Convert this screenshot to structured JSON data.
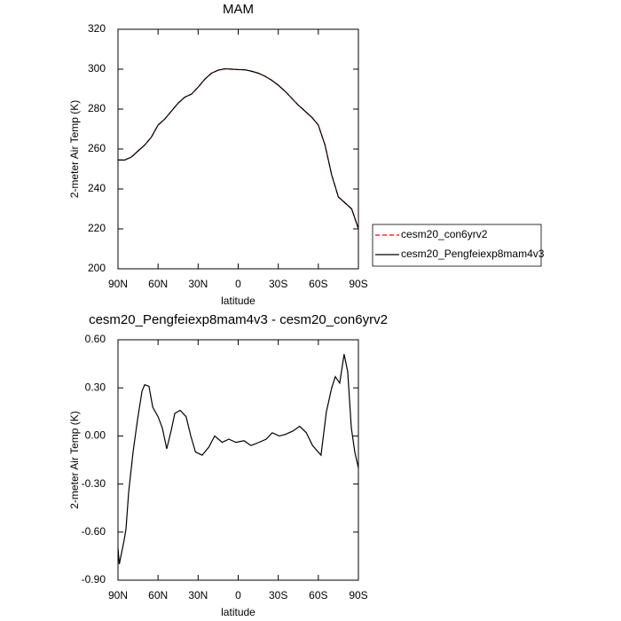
{
  "chart_data": [
    {
      "type": "line",
      "title": "MAM",
      "x_label": "latitude",
      "y_label": "2-meter Air Temp (K)",
      "x": [
        90,
        85,
        80,
        75,
        70,
        65,
        60,
        55,
        50,
        45,
        40,
        35,
        30,
        25,
        20,
        15,
        10,
        5,
        0,
        -5,
        -10,
        -15,
        -20,
        -25,
        -30,
        -35,
        -40,
        -45,
        -50,
        -55,
        -60,
        -65,
        -70,
        -75,
        -80,
        -85,
        -90
      ],
      "series": [
        {
          "name": "cesm20_con6yrv2",
          "color": "#ff0000",
          "dashed": true,
          "values": [
            254.5,
            254.5,
            256,
            259,
            262,
            266,
            272,
            275,
            279,
            283,
            286,
            287.5,
            291,
            295,
            298,
            299.5,
            300.2,
            300,
            299.8,
            299.7,
            299,
            298,
            296.5,
            294.5,
            292,
            289,
            285.5,
            282,
            279,
            276,
            272,
            262,
            247,
            236,
            233,
            230,
            220
          ]
        },
        {
          "name": "cesm20_Pengfeiexp8mam4v3",
          "color": "#000000",
          "dashed": false,
          "values": [
            254.5,
            254.5,
            256,
            259,
            262,
            266,
            272,
            275,
            279,
            283,
            286,
            287.5,
            291,
            295,
            298,
            299.5,
            300.2,
            300,
            299.8,
            299.7,
            299,
            298,
            296.5,
            294.5,
            292,
            289,
            285.5,
            282,
            279,
            276,
            272,
            262,
            247,
            236,
            233,
            230,
            220
          ]
        }
      ],
      "xlim": [
        90,
        -90
      ],
      "xticks": [
        {
          "value": 90,
          "label": "90N"
        },
        {
          "value": 60,
          "label": "60N"
        },
        {
          "value": 30,
          "label": "30N"
        },
        0,
        {
          "value": -30,
          "label": "30S"
        },
        {
          "value": -60,
          "label": "60S"
        },
        {
          "value": -90,
          "label": "90S"
        }
      ],
      "ylim": [
        200,
        320
      ],
      "yticks": [
        200,
        220,
        240,
        260,
        280,
        300,
        320
      ],
      "legend": "right"
    },
    {
      "type": "line",
      "title": "cesm20_Pengfeiexp8mam4v3 - cesm20_con6yrv2",
      "x_label": "latitude",
      "y_label": "2-meter Air Temp (K)",
      "x": [
        90,
        89,
        85.4,
        84,
        82,
        78.7,
        75.4,
        72,
        70,
        66.8,
        64,
        60,
        56.8,
        53.5,
        50,
        47.5,
        43.5,
        39,
        35.5,
        32,
        27,
        22,
        17.6,
        12,
        7,
        1.7,
        -4.3,
        -9.6,
        -15.6,
        -21,
        -25.5,
        -30.8,
        -35.5,
        -40.8,
        -46,
        -51,
        -55.7,
        -62,
        -66,
        -70,
        -72.7,
        -76,
        -79.3,
        -82,
        -84.7,
        -87.3,
        -90
      ],
      "values": [
        -0.7,
        -0.8,
        -0.65,
        -0.58,
        -0.35,
        -0.1,
        0.1,
        0.28,
        0.32,
        0.31,
        0.18,
        0.12,
        0.05,
        -0.08,
        0.04,
        0.14,
        0.16,
        0.12,
        0.0,
        -0.1,
        -0.12,
        -0.07,
        0.0,
        -0.04,
        -0.02,
        -0.04,
        -0.03,
        -0.06,
        -0.04,
        -0.02,
        0.02,
        0.0,
        0.01,
        0.03,
        0.06,
        0.02,
        -0.06,
        -0.12,
        0.15,
        0.3,
        0.37,
        0.33,
        0.51,
        0.4,
        0.05,
        -0.1,
        -0.2
      ],
      "color": "#000000",
      "xlim": [
        90,
        -90
      ],
      "xticks": [
        {
          "value": 90,
          "label": "90N"
        },
        {
          "value": 60,
          "label": "60N"
        },
        {
          "value": 30,
          "label": "30N"
        },
        0,
        {
          "value": -30,
          "label": "30S"
        },
        {
          "value": -60,
          "label": "60S"
        },
        {
          "value": -90,
          "label": "90S"
        }
      ],
      "ylim": [
        -0.9,
        0.6
      ],
      "yticks": [
        {
          "value": -0.9,
          "label": "-0.90"
        },
        {
          "value": -0.6,
          "label": "-0.60"
        },
        {
          "value": -0.3,
          "label": "-0.30"
        },
        {
          "value": 0,
          "label": "0.00"
        },
        {
          "value": 0.3,
          "label": "0.30"
        },
        {
          "value": 0.6,
          "label": "0.60"
        }
      ]
    }
  ]
}
